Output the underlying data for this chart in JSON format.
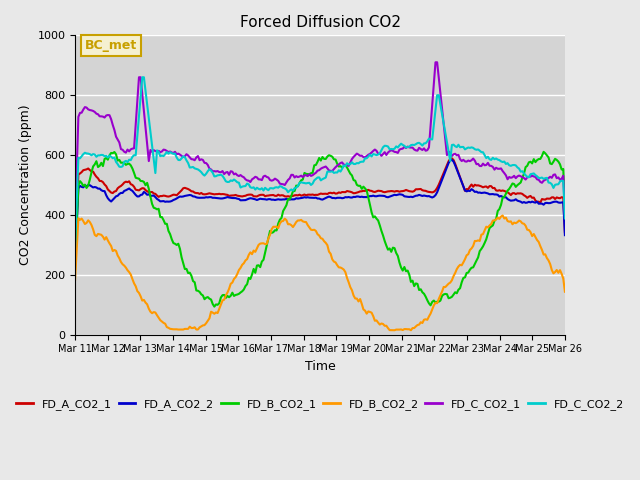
{
  "title": "Forced Diffusion CO2",
  "xlabel": "Time",
  "ylabel": "CO2 Concentration (ppm)",
  "ylim": [
    0,
    1000
  ],
  "background_color": "#e8e8e8",
  "plot_bg_color": "#d4d4d4",
  "grid_color": "#ffffff",
  "bc_met_label": "BC_met",
  "bc_met_color": "#c8a000",
  "bc_met_bg": "#f5f0d0",
  "series": [
    {
      "label": "FD_A_CO2_1",
      "color": "#cc0000",
      "lw": 1.5
    },
    {
      "label": "FD_A_CO2_2",
      "color": "#0000cc",
      "lw": 1.5
    },
    {
      "label": "FD_B_CO2_1",
      "color": "#00cc00",
      "lw": 1.5
    },
    {
      "label": "FD_B_CO2_2",
      "color": "#ff9900",
      "lw": 1.5
    },
    {
      "label": "FD_C_CO2_1",
      "color": "#9900cc",
      "lw": 1.5
    },
    {
      "label": "FD_C_CO2_2",
      "color": "#00cccc",
      "lw": 1.5
    }
  ],
  "x_ticks": [
    0,
    1,
    2,
    3,
    4,
    5,
    6,
    7,
    8,
    9,
    10,
    11,
    12,
    13,
    14,
    15
  ],
  "x_tick_labels": [
    "Mar 11",
    "Mar 12",
    "Mar 13",
    "Mar 14",
    "Mar 15",
    "Mar 16",
    "Mar 17",
    "Mar 18",
    "Mar 19",
    "Mar 20",
    "Mar 21",
    "Mar 22",
    "Mar 23",
    "Mar 24",
    "Mar 25",
    "Mar 26"
  ],
  "n_points": 300
}
